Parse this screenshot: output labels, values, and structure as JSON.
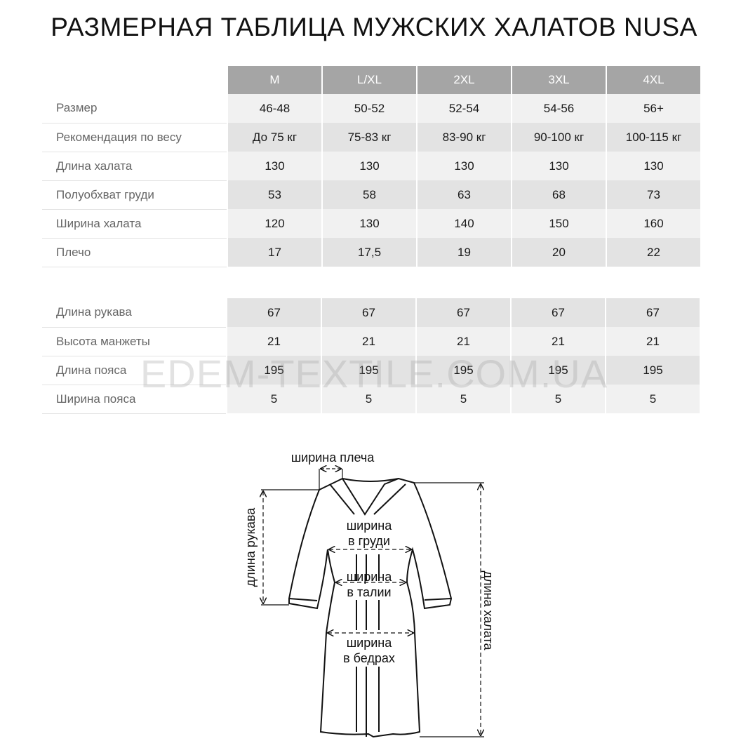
{
  "title": "РАЗМЕРНАЯ ТАБЛИЦА МУЖСКИХ ХАЛАТОВ NUSA",
  "sizes": [
    "M",
    "L/XL",
    "2XL",
    "3XL",
    "4XL"
  ],
  "table1": [
    {
      "label": "Размер",
      "values": [
        "46-48",
        "50-52",
        "52-54",
        "54-56",
        "56+"
      ]
    },
    {
      "label": "Рекомендация по весу",
      "values": [
        "До 75 кг",
        "75-83 кг",
        "83-90 кг",
        "90-100 кг",
        "100-115 кг"
      ]
    },
    {
      "label": "Длина халата",
      "values": [
        "130",
        "130",
        "130",
        "130",
        "130"
      ]
    },
    {
      "label": "Полуобхват груди",
      "values": [
        "53",
        "58",
        "63",
        "68",
        "73"
      ]
    },
    {
      "label": "Ширина халата",
      "values": [
        "120",
        "130",
        "140",
        "150",
        "160"
      ]
    },
    {
      "label": "Плечо",
      "values": [
        "17",
        "17,5",
        "19",
        "20",
        "22"
      ]
    }
  ],
  "table2": [
    {
      "label": "Длина рукава",
      "values": [
        "67",
        "67",
        "67",
        "67",
        "67"
      ]
    },
    {
      "label": "Высота манжеты",
      "values": [
        "21",
        "21",
        "21",
        "21",
        "21"
      ]
    },
    {
      "label": "Длина пояса",
      "values": [
        "195",
        "195",
        "195",
        "195",
        "195"
      ]
    },
    {
      "label": "Ширина пояса",
      "values": [
        "5",
        "5",
        "5",
        "5",
        "5"
      ]
    }
  ],
  "watermark": "EDEM-TEXTILE.COM.UA",
  "diagram": {
    "shoulder_width": "ширина плеча",
    "sleeve_length": "длина рукава",
    "robe_length": "длина халата",
    "chest_1": "ширина",
    "chest_2": "в груди",
    "waist_1": "ширина",
    "waist_2": "в талии",
    "hips_1": "ширина",
    "hips_2": "в бедрах"
  }
}
